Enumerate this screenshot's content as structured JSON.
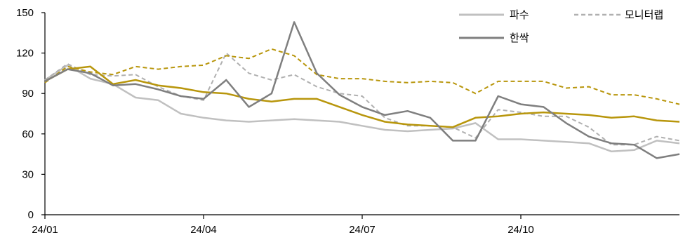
{
  "chart_data": {
    "type": "line",
    "x_ticks": [
      "24/01",
      "24/04",
      "24/07",
      "24/10"
    ],
    "y_ticks": [
      0,
      30,
      60,
      90,
      120,
      150
    ],
    "ylim": [
      0,
      150
    ],
    "grid": false,
    "legend_position": "top-right",
    "series": [
      {
        "name": "파수",
        "color": "#c0c0c0",
        "style": "solid",
        "values": [
          100,
          111,
          101,
          97,
          87,
          85,
          75,
          72,
          70,
          69,
          70,
          71,
          70,
          69,
          66,
          63,
          62,
          63,
          64,
          68,
          56,
          56,
          55,
          54,
          53,
          47,
          48,
          55,
          53
        ]
      },
      {
        "name": "모니터랩",
        "color": "#b0b0b0",
        "style": "dashed",
        "values": [
          100,
          112,
          104,
          103,
          104,
          95,
          88,
          85,
          120,
          105,
          100,
          104,
          95,
          90,
          88,
          72,
          66,
          66,
          65,
          57,
          78,
          76,
          73,
          73,
          65,
          52,
          52,
          58,
          55
        ]
      },
      {
        "name": "",
        "color": "#b8960c",
        "style": "dashed",
        "values": [
          98,
          110,
          106,
          104,
          110,
          108,
          110,
          111,
          118,
          116,
          123,
          118,
          104,
          101,
          101,
          99,
          98,
          99,
          98,
          90,
          99,
          99,
          99,
          94,
          95,
          89,
          89,
          86,
          82
        ]
      },
      {
        "name": "",
        "color": "#b8960c",
        "style": "solid",
        "values": [
          99,
          108,
          110,
          97,
          100,
          96,
          94,
          91,
          90,
          86,
          84,
          86,
          86,
          80,
          74,
          69,
          67,
          66,
          65,
          72,
          73,
          75,
          76,
          75,
          74,
          72,
          73,
          70,
          69
        ]
      },
      {
        "name": "한싹",
        "color": "#7f7f7f",
        "style": "solid",
        "values": [
          99,
          108,
          105,
          96,
          97,
          93,
          88,
          86,
          100,
          80,
          90,
          143,
          105,
          89,
          80,
          74,
          77,
          72,
          55,
          55,
          88,
          82,
          80,
          68,
          58,
          53,
          52,
          42,
          45
        ]
      }
    ]
  }
}
